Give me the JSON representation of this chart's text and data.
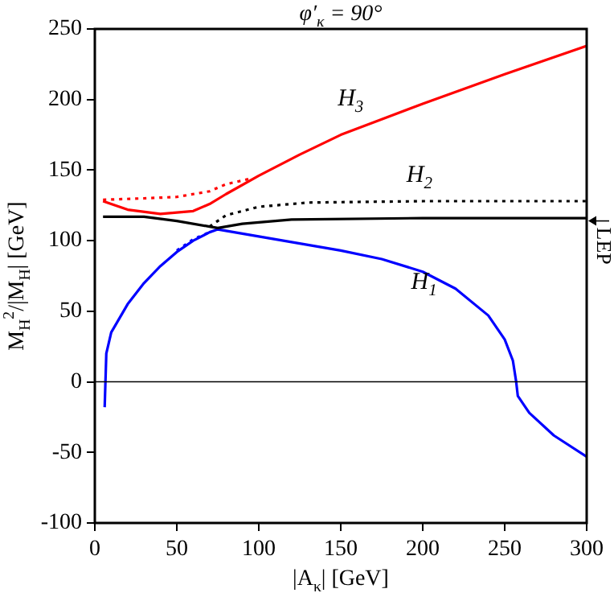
{
  "chart_data": {
    "type": "line",
    "title": "φ′$_{κ}$ = 90°",
    "xlabel": "|A$_{κ}$| [GeV]",
    "ylabel": "M$_{H}$$^{2}$/|M$_{H}$| [GeV]",
    "xlim": [
      0,
      300
    ],
    "ylim": [
      -100,
      250
    ],
    "xticks": [
      0,
      50,
      100,
      150,
      200,
      250,
      300
    ],
    "yticks": [
      -100,
      -50,
      0,
      50,
      100,
      150,
      200,
      250
    ],
    "marker": "none",
    "series": [
      {
        "name": "H$_{3}$",
        "color": "#ff0000",
        "line_style": "solid",
        "x": [
          5,
          20,
          40,
          60,
          70,
          80,
          100,
          125,
          150,
          175,
          200,
          250,
          300
        ],
        "values": [
          128,
          122,
          119,
          121,
          126,
          133,
          146,
          161,
          175,
          186,
          197,
          218,
          238
        ]
      },
      {
        "color": "#ff0000",
        "line_style": "dotted",
        "x": [
          5,
          30,
          50,
          70,
          80,
          95
        ],
        "values": [
          129,
          130,
          131,
          135,
          140,
          144
        ]
      },
      {
        "name": "H$_{2}$",
        "color": "#000000",
        "line_style": "dotted",
        "x": [
          70,
          80,
          100,
          130,
          200,
          300
        ],
        "values": [
          110,
          118,
          124,
          127,
          128,
          128
        ]
      },
      {
        "color": "#000000",
        "line_style": "solid",
        "x": [
          5,
          30,
          50,
          70,
          75,
          90,
          120,
          200,
          300
        ],
        "values": [
          117,
          117,
          114,
          110,
          109,
          112,
          115,
          116,
          116
        ]
      },
      {
        "color": "#0000ff",
        "line_style": "dotted",
        "x": [
          50,
          60,
          70
        ],
        "values": [
          93,
          101,
          106
        ]
      },
      {
        "name": "H$_{1}$",
        "color": "#0000ff",
        "line_style": "solid",
        "x": [
          6,
          7,
          10,
          20,
          30,
          40,
          50,
          60,
          70,
          75,
          100,
          150,
          175,
          200,
          220,
          240,
          250,
          255,
          257,
          258,
          265,
          280,
          300
        ],
        "values": [
          -18,
          20,
          35,
          55,
          70,
          82,
          92,
          100,
          106,
          108,
          103,
          93,
          87,
          78,
          66,
          47,
          30,
          15,
          0,
          -10,
          -22,
          -38,
          -53
        ]
      }
    ],
    "ref_lines": [
      {
        "axis": "y",
        "value": 0,
        "color": "#000000"
      },
      {
        "axis": "y",
        "value": 114,
        "label": "LEP",
        "color": "#000000"
      }
    ]
  }
}
